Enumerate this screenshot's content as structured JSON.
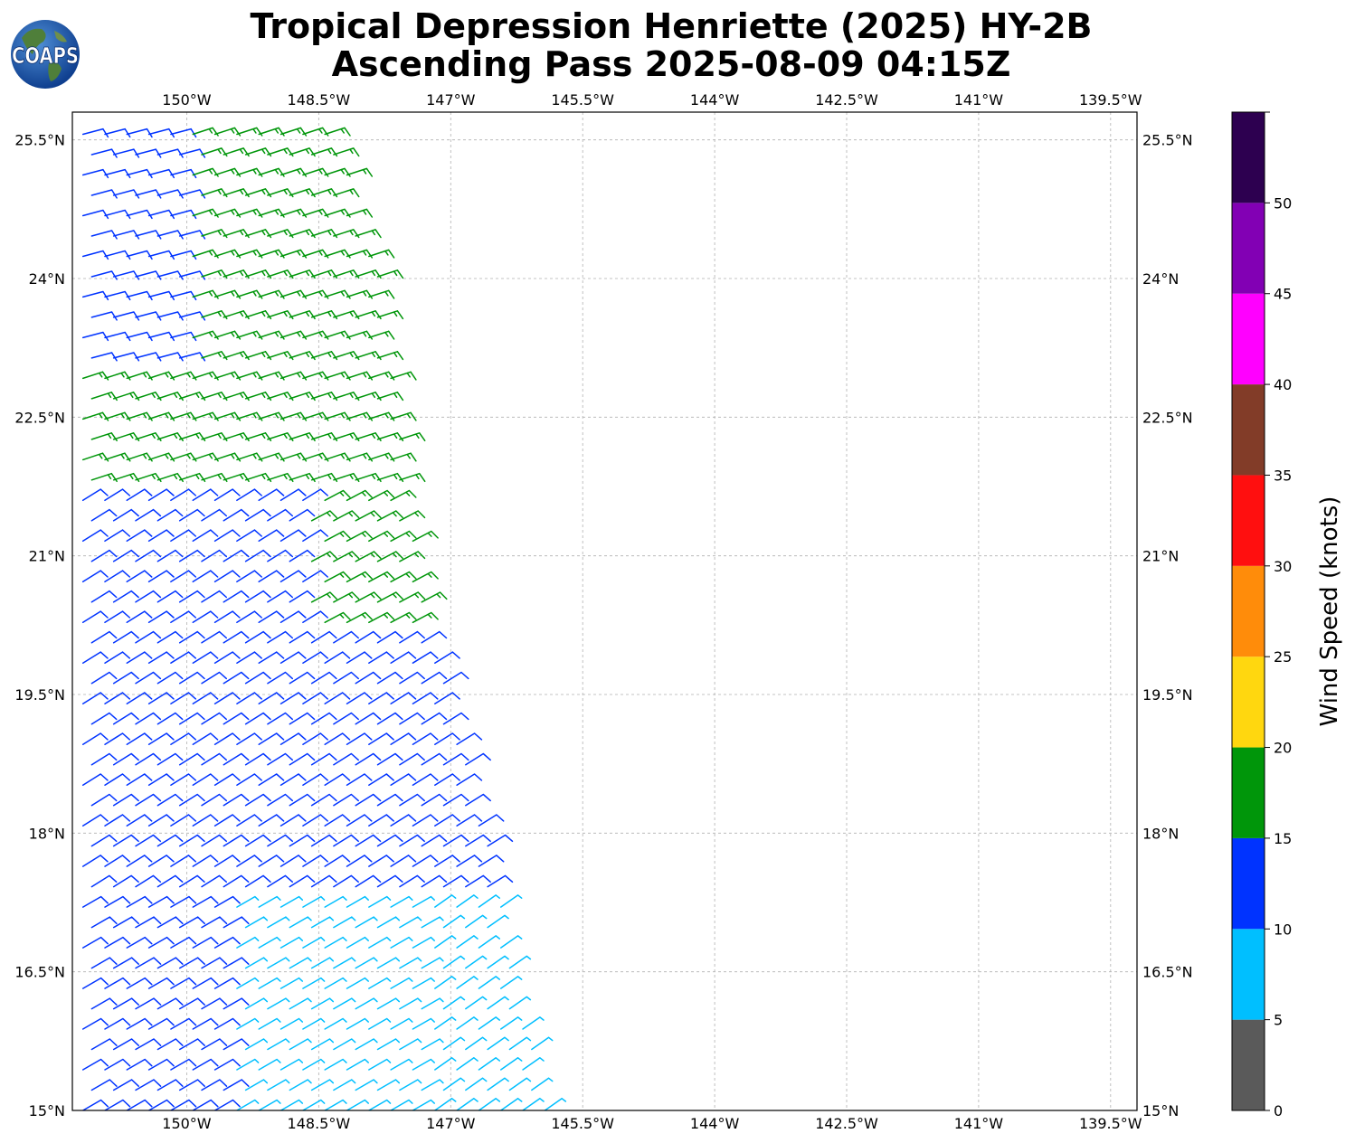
{
  "header": {
    "title_line1": "Tropical Depression Henriette (2025) HY-2B",
    "title_line2": "Ascending Pass 2025-08-09 04:15Z",
    "logo_text": "COAPS"
  },
  "chart_data": {
    "type": "wind-barb-map",
    "lon_range": [
      -151.3,
      -139.2
    ],
    "lat_range": [
      15.0,
      25.8
    ],
    "x_ticks": [
      -150,
      -148.5,
      -147,
      -145.5,
      -144,
      -142.5,
      -141,
      -139.5
    ],
    "x_tick_labels": [
      "150°W",
      "148.5°W",
      "147°W",
      "145.5°W",
      "144°W",
      "142.5°W",
      "141°W",
      "139.5°W"
    ],
    "y_ticks": [
      15,
      16.5,
      18,
      19.5,
      21,
      22.5,
      24,
      25.5
    ],
    "y_tick_labels": [
      "15°N",
      "16.5°N",
      "18°N",
      "19.5°N",
      "21°N",
      "22.5°N",
      "24°N",
      "25.5°N"
    ],
    "grid": true,
    "swath": {
      "west_edge_lon": -151.3,
      "east_edge": [
        [
          15.0,
          -145.9
        ],
        [
          18.0,
          -146.6
        ],
        [
          21.0,
          -147.4
        ],
        [
          24.0,
          -147.8
        ],
        [
          25.8,
          -148.4
        ]
      ]
    },
    "colorbar": {
      "label": "Wind Speed (knots)",
      "range": [
        0,
        55
      ],
      "ticks": [
        0,
        5,
        10,
        15,
        20,
        25,
        30,
        35,
        40,
        45,
        50
      ],
      "tick_labels": [
        "0",
        "5",
        "10",
        "15",
        "20",
        "25",
        "30",
        "35",
        "40",
        "45",
        "50"
      ],
      "bins": [
        {
          "min": 0,
          "max": 5,
          "color": "#5a5a5a"
        },
        {
          "min": 5,
          "max": 10,
          "color": "#00bfff"
        },
        {
          "min": 10,
          "max": 15,
          "color": "#0033ff"
        },
        {
          "min": 15,
          "max": 20,
          "color": "#00960a"
        },
        {
          "min": 20,
          "max": 25,
          "color": "#ffd70f"
        },
        {
          "min": 25,
          "max": 30,
          "color": "#ff8c0a"
        },
        {
          "min": 30,
          "max": 35,
          "color": "#ff0f0f"
        },
        {
          "min": 35,
          "max": 40,
          "color": "#823c28"
        },
        {
          "min": 40,
          "max": 45,
          "color": "#ff00ff"
        },
        {
          "min": 45,
          "max": 50,
          "color": "#8200b4"
        },
        {
          "min": 50,
          "max": 55,
          "color": "#2d0050"
        }
      ]
    },
    "wind_regions": [
      {
        "lat_min": 23.0,
        "lat_max": 25.8,
        "lon_max": -150.0,
        "speed_kt": 12,
        "dir_from_deg": 75
      },
      {
        "lat_min": 21.8,
        "lat_max": 25.8,
        "lon_max": -140.0,
        "speed_kt": 17,
        "dir_from_deg": 72
      },
      {
        "lat_min": 20.2,
        "lat_max": 21.8,
        "lon_min": -148.6,
        "lon_max": -140.0,
        "speed_kt": 17,
        "dir_from_deg": 62
      },
      {
        "lat_min": 17.2,
        "lat_max": 21.8,
        "lon_max": -140.0,
        "speed_kt": 12,
        "dir_from_deg": 58
      },
      {
        "lat_min": 15.0,
        "lat_max": 17.2,
        "lon_min": -149.5,
        "lon_max": -147.2,
        "speed_kt": 8,
        "dir_from_deg": 60
      },
      {
        "lat_min": 15.0,
        "lat_max": 18.6,
        "lon_min": -147.2,
        "lon_max": -140.0,
        "speed_kt": 8,
        "dir_from_deg": 55
      },
      {
        "lat_min": 15.0,
        "lat_max": 17.2,
        "lon_max": -140.0,
        "speed_kt": 12,
        "dir_from_deg": 60
      }
    ]
  }
}
